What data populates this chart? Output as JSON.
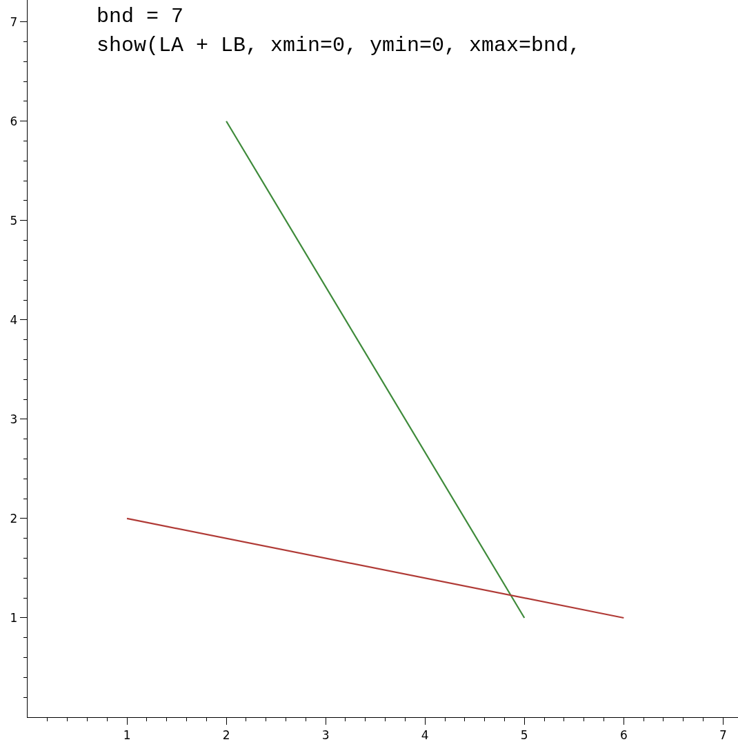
{
  "chart_data": {
    "type": "line",
    "series": [
      {
        "color": "#3e8a3a",
        "x": [
          2,
          5
        ],
        "values": [
          6,
          1
        ]
      },
      {
        "color": "#b03a36",
        "x": [
          1,
          6
        ],
        "values": [
          2,
          1
        ]
      }
    ],
    "xlim": [
      0,
      7.15
    ],
    "ylim": [
      0,
      7.22
    ],
    "xticks": [
      1,
      2,
      3,
      4,
      5,
      6,
      7,
      {
        "value": 0.2,
        "label": null
      },
      {
        "value": 0.4,
        "label": null
      },
      {
        "value": 0.6,
        "label": null
      },
      {
        "value": 0.8,
        "label": null
      },
      {
        "value": 1.2,
        "label": null
      },
      {
        "value": 1.4,
        "label": null
      },
      {
        "value": 1.6,
        "label": null
      },
      {
        "value": 1.8,
        "label": null
      },
      {
        "value": 2.2,
        "label": null
      },
      {
        "value": 2.4,
        "label": null
      },
      {
        "value": 2.6,
        "label": null
      },
      {
        "value": 2.8,
        "label": null
      },
      {
        "value": 3.2,
        "label": null
      },
      {
        "value": 3.4,
        "label": null
      },
      {
        "value": 3.6,
        "label": null
      },
      {
        "value": 3.8,
        "label": null
      },
      {
        "value": 4.2,
        "label": null
      },
      {
        "value": 4.4,
        "label": null
      },
      {
        "value": 4.6,
        "label": null
      },
      {
        "value": 4.8,
        "label": null
      },
      {
        "value": 5.2,
        "label": null
      },
      {
        "value": 5.4,
        "label": null
      },
      {
        "value": 5.6,
        "label": null
      },
      {
        "value": 5.8,
        "label": null
      },
      {
        "value": 6.2,
        "label": null
      },
      {
        "value": 6.4,
        "label": null
      },
      {
        "value": 6.6,
        "label": null
      },
      {
        "value": 6.8,
        "label": null
      }
    ],
    "yticks": [
      1,
      2,
      3,
      4,
      5,
      6,
      7,
      {
        "value": 0.2,
        "label": null
      },
      {
        "value": 0.4,
        "label": null
      },
      {
        "value": 0.6,
        "label": null
      },
      {
        "value": 0.8,
        "label": null
      },
      {
        "value": 1.2,
        "label": null
      },
      {
        "value": 1.4,
        "label": null
      },
      {
        "value": 1.6,
        "label": null
      },
      {
        "value": 1.8,
        "label": null
      },
      {
        "value": 2.2,
        "label": null
      },
      {
        "value": 2.4,
        "label": null
      },
      {
        "value": 2.6,
        "label": null
      },
      {
        "value": 2.8,
        "label": null
      },
      {
        "value": 3.2,
        "label": null
      },
      {
        "value": 3.4,
        "label": null
      },
      {
        "value": 3.6,
        "label": null
      },
      {
        "value": 3.8,
        "label": null
      },
      {
        "value": 4.2,
        "label": null
      },
      {
        "value": 4.4,
        "label": null
      },
      {
        "value": 4.6,
        "label": null
      },
      {
        "value": 4.8,
        "label": null
      },
      {
        "value": 5.2,
        "label": null
      },
      {
        "value": 5.4,
        "label": null
      },
      {
        "value": 5.6,
        "label": null
      },
      {
        "value": 5.8,
        "label": null
      },
      {
        "value": 6.2,
        "label": null
      },
      {
        "value": 6.4,
        "label": null
      },
      {
        "value": 6.6,
        "label": null
      },
      {
        "value": 6.8,
        "label": null
      }
    ],
    "annotations": [
      "bnd = 7",
      "show(LA + LB, xmin=0, ymin=0, xmax=bnd,"
    ],
    "grid": false,
    "marker": "none",
    "line_style": "solid"
  }
}
